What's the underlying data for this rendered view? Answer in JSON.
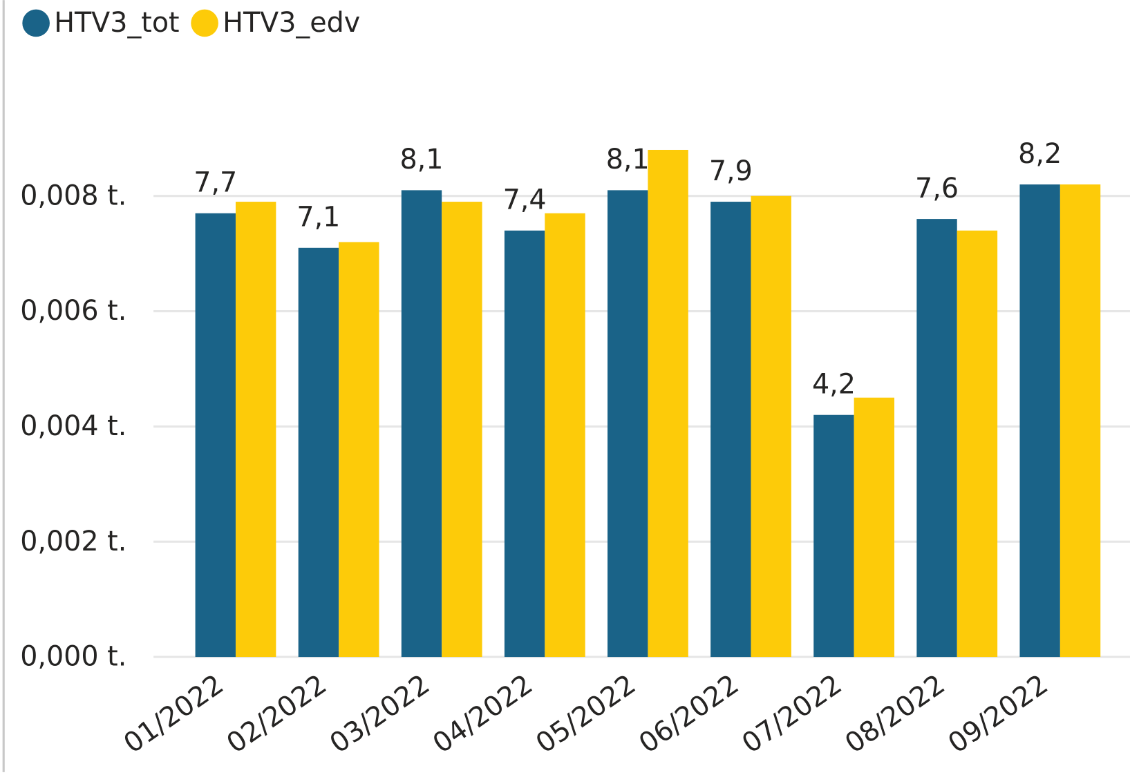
{
  "chart_data": {
    "type": "bar",
    "categories": [
      "01/2022",
      "02/2022",
      "03/2022",
      "04/2022",
      "05/2022",
      "06/2022",
      "07/2022",
      "08/2022",
      "09/2022"
    ],
    "series": [
      {
        "name": "HTV3_tot",
        "color": "#1a6388",
        "values": [
          0.0077,
          0.0071,
          0.0081,
          0.0074,
          0.0081,
          0.0079,
          0.0042,
          0.0076,
          0.0082
        ],
        "value_labels": [
          "7,7",
          "7,1",
          "8,1",
          "7,4",
          "8,1",
          "7,9",
          "4,2",
          "7,6",
          "8,2"
        ]
      },
      {
        "name": "HTV3_edv",
        "color": "#fdcb09",
        "values": [
          0.0079,
          0.0072,
          0.0079,
          0.0077,
          0.0088,
          0.008,
          0.0045,
          0.0074,
          0.0082
        ]
      }
    ],
    "ylim": [
      0,
      0.008
    ],
    "yticks": [
      {
        "value": 0,
        "label": "0,000 t."
      },
      {
        "value": 0.002,
        "label": "0,002 t."
      },
      {
        "value": 0.004,
        "label": "0,004 t."
      },
      {
        "value": 0.006,
        "label": "0,006 t."
      },
      {
        "value": 0.008,
        "label": "0,008 t."
      }
    ],
    "grid": true
  }
}
